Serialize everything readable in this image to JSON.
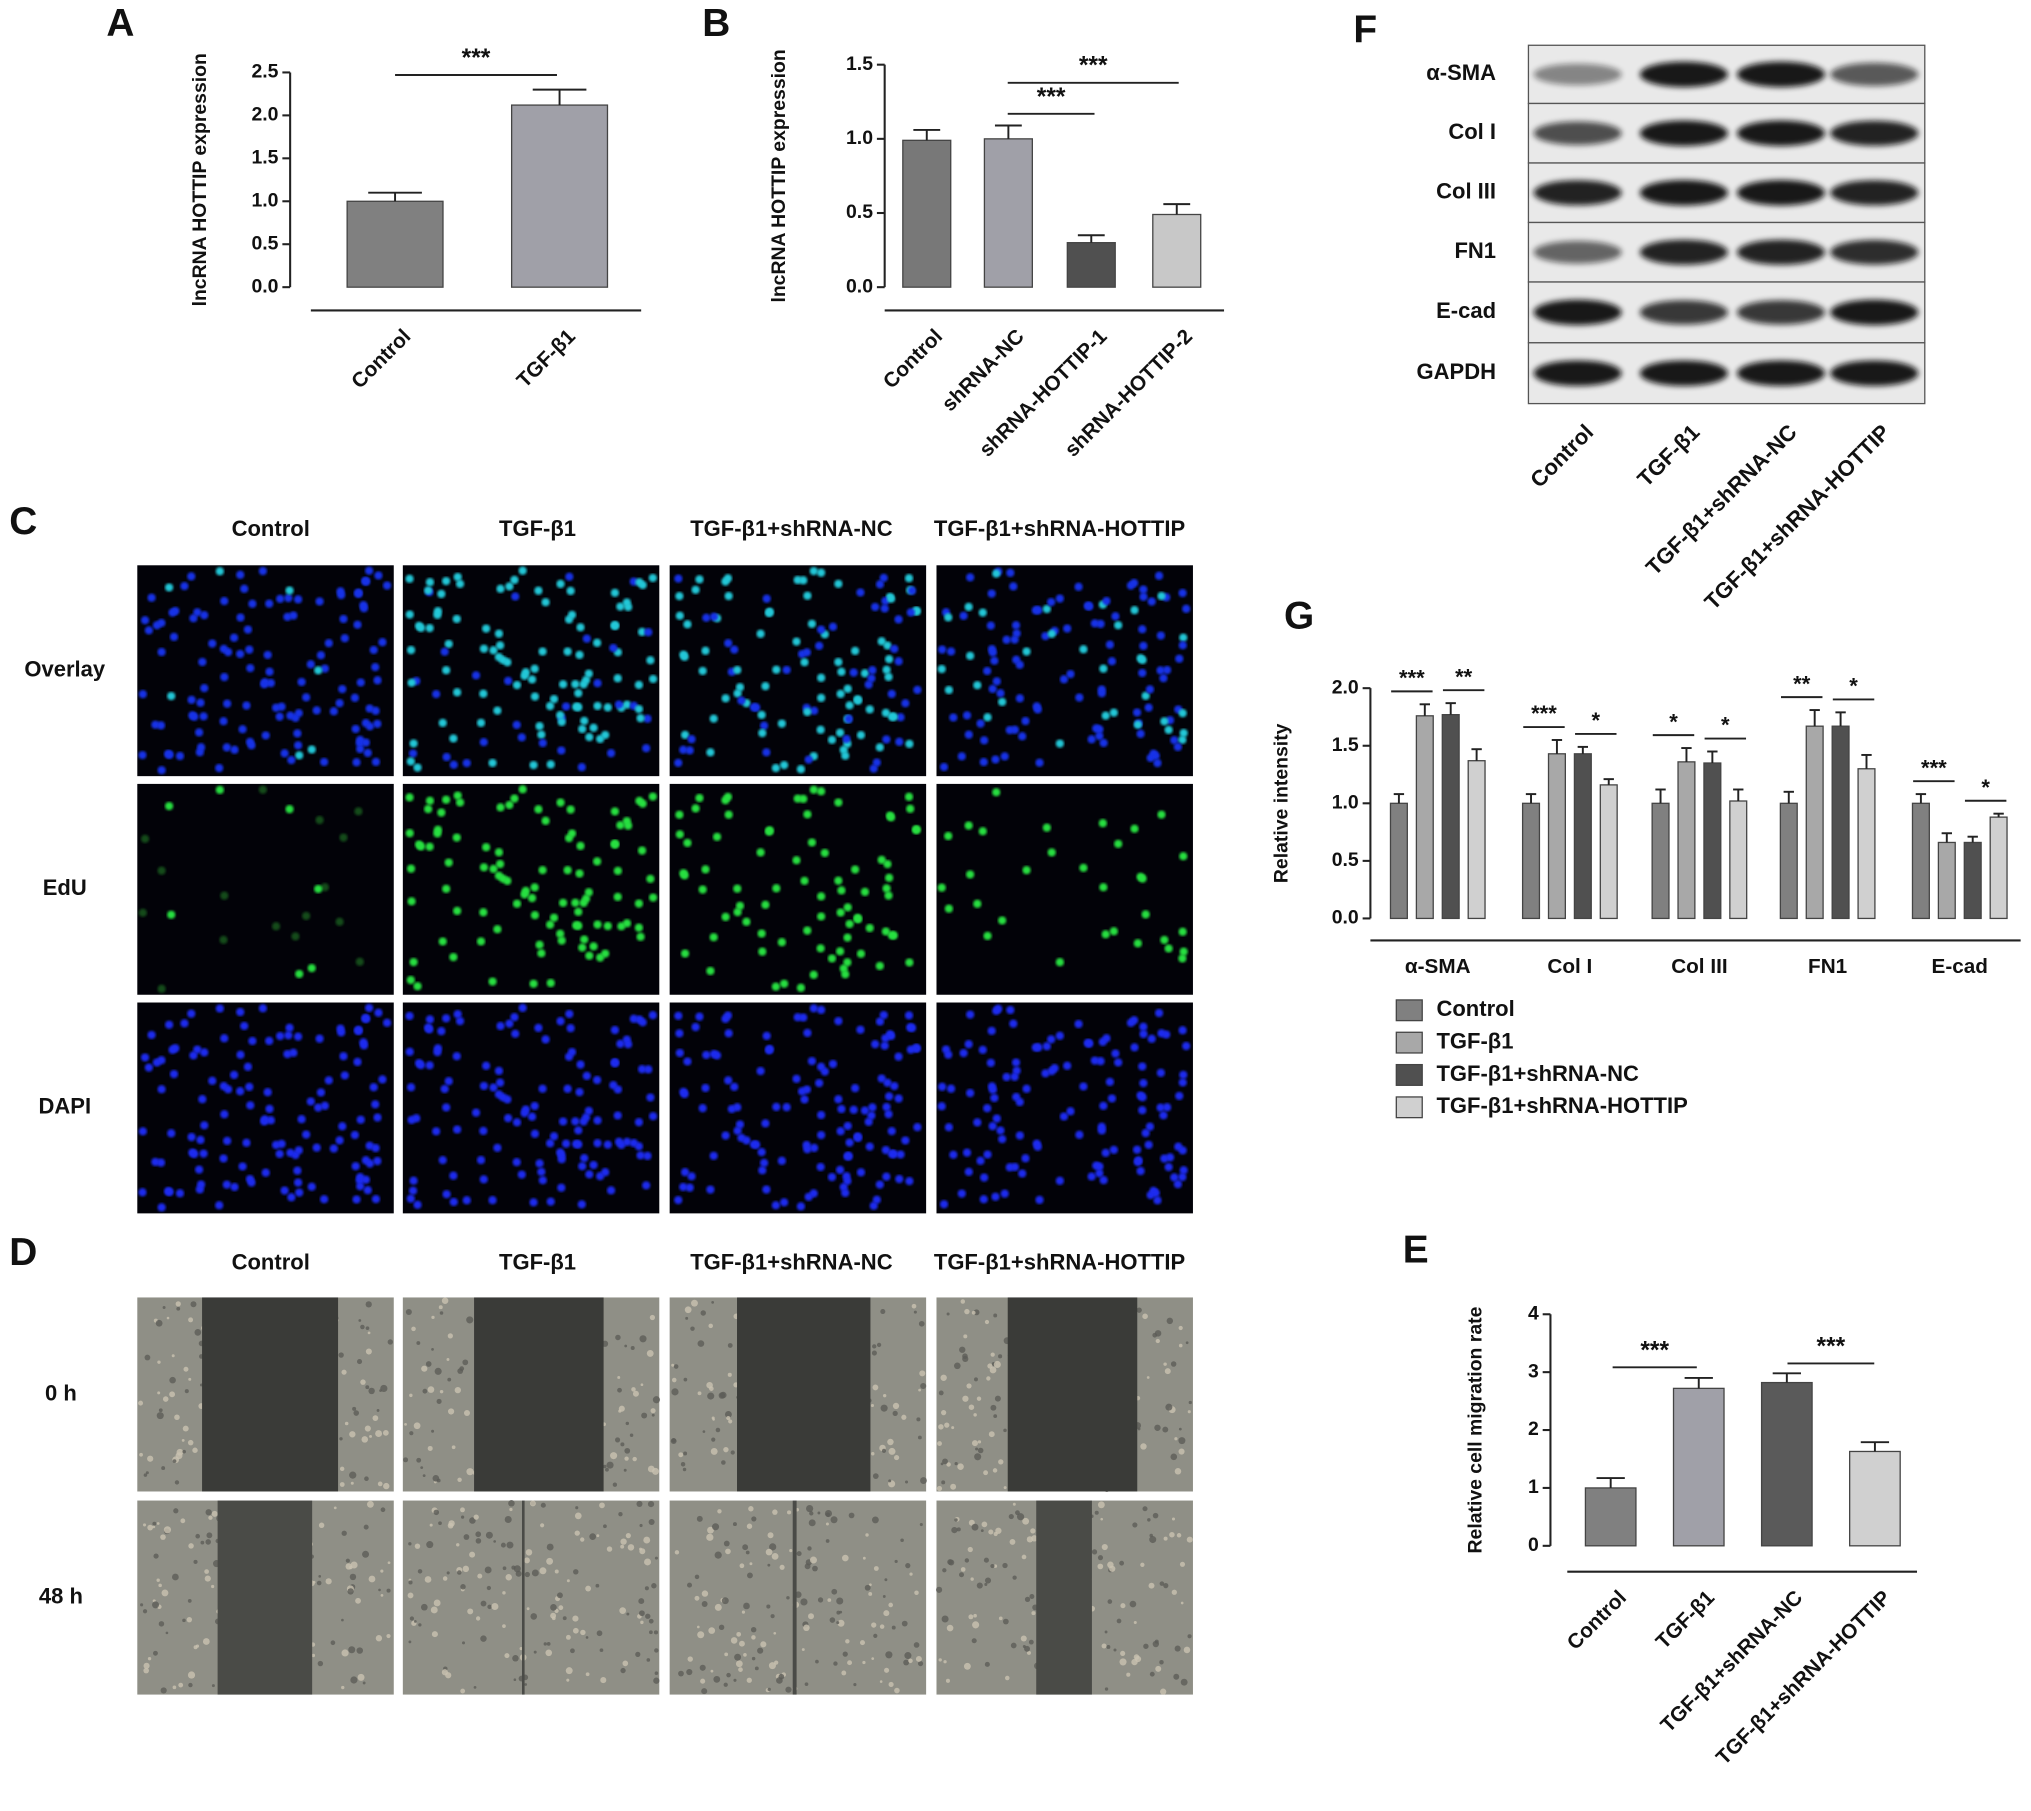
{
  "panel_labels": [
    "A",
    "B",
    "C",
    "D",
    "E",
    "F",
    "G"
  ],
  "chart_data": [
    {
      "type": "bar",
      "ylabel": "lncRNA HOTTIP expression",
      "categories": [
        "Control",
        "TGF-β1"
      ],
      "values": [
        1.0,
        2.12
      ],
      "errors": [
        0.1,
        0.18
      ],
      "colors": [
        "#808080",
        "#a0a0a8"
      ],
      "ylim": [
        0,
        2.5
      ],
      "yticks": [
        {
          "value": 0,
          "label": "0.0"
        },
        {
          "value": 0.5,
          "label": "0.5"
        },
        {
          "value": 1,
          "label": "1.0"
        },
        {
          "value": 1.5,
          "label": "1.5"
        },
        {
          "value": 2,
          "label": "2.0"
        },
        {
          "value": 2.5,
          "label": "2.5"
        }
      ],
      "significance": [
        "***"
      ]
    },
    {
      "type": "bar",
      "ylabel": "lncRNA HOTTIP expression",
      "categories": [
        "Control",
        "shRNA-NC",
        "shRNA-HOTTIP-1",
        "shRNA-HOTTIP-2"
      ],
      "values": [
        0.99,
        1.0,
        0.3,
        0.49
      ],
      "errors": [
        0.07,
        0.09,
        0.05,
        0.07
      ],
      "colors": [
        "#787878",
        "#a0a0a8",
        "#505050",
        "#c8c8c8"
      ],
      "ylim": [
        0,
        1.5
      ],
      "yticks": [
        {
          "value": 0,
          "label": "0.0"
        },
        {
          "value": 0.5,
          "label": "0.5"
        },
        {
          "value": 1,
          "label": "1.0"
        },
        {
          "value": 1.5,
          "label": "1.5"
        }
      ],
      "significance": [
        "***",
        "***"
      ]
    },
    {
      "type": "bar",
      "ylabel": "Relative cell migration rate",
      "categories": [
        "Control",
        "TGF-β1",
        "TGF-β1+shRNA-NC",
        "TGF-β1+shRNA-HOTTIP"
      ],
      "values": [
        1.0,
        2.72,
        2.82,
        1.63
      ],
      "errors": [
        0.17,
        0.18,
        0.16,
        0.16
      ],
      "colors": [
        "#808080",
        "#a0a0a8",
        "#5a5a5a",
        "#d0d0d0"
      ],
      "ylim": [
        0,
        4
      ],
      "yticks": [
        0,
        1,
        2,
        3,
        4
      ],
      "significance": [
        "***",
        "***"
      ]
    },
    {
      "type": "bar",
      "ylabel": "Relative intensity",
      "categories": [
        "α-SMA",
        "Col I",
        "Col III",
        "FN1",
        "E-cad"
      ],
      "series": [
        {
          "name": "Control",
          "color": "#808080",
          "values": [
            1.0,
            1.0,
            1.0,
            1.0,
            1.0
          ],
          "errors": [
            0.08,
            0.08,
            0.12,
            0.1,
            0.08
          ]
        },
        {
          "name": "TGF-β1",
          "color": "#a8a8a8",
          "values": [
            1.76,
            1.43,
            1.36,
            1.67,
            0.66
          ],
          "errors": [
            0.1,
            0.12,
            0.12,
            0.14,
            0.08
          ]
        },
        {
          "name": "TGF-β1+shRNA-NC",
          "color": "#505050",
          "values": [
            1.77,
            1.43,
            1.35,
            1.67,
            0.66
          ],
          "errors": [
            0.1,
            0.06,
            0.1,
            0.12,
            0.05
          ]
        },
        {
          "name": "TGF-β1+shRNA-HOTTIP",
          "color": "#d0d0d0",
          "values": [
            1.37,
            1.16,
            1.02,
            1.3,
            0.88
          ],
          "errors": [
            0.1,
            0.05,
            0.1,
            0.12,
            0.03
          ]
        }
      ],
      "ylim": [
        0,
        2
      ],
      "yticks": [
        {
          "value": 0,
          "label": "0.0"
        },
        {
          "value": 0.5,
          "label": "0.5"
        },
        {
          "value": 1,
          "label": "1.0"
        },
        {
          "value": 1.5,
          "label": "1.5"
        },
        {
          "value": 2,
          "label": "2.0"
        }
      ],
      "significance": [
        [
          "***",
          "**"
        ],
        [
          "***",
          "*"
        ],
        [
          "*",
          "*"
        ],
        [
          "**",
          "*"
        ],
        [
          "***",
          "*"
        ]
      ]
    }
  ],
  "edu_assay": {
    "columns": [
      "Control",
      "TGF-β1",
      "TGF-β1+shRNA-NC",
      "TGF-β1+shRNA-HOTTIP"
    ],
    "rows": [
      "Overlay",
      "EdU",
      "DAPI"
    ]
  },
  "wound_assay": {
    "columns": [
      "Control",
      "TGF-β1",
      "TGF-β1+shRNA-NC",
      "TGF-β1+shRNA-HOTTIP"
    ],
    "rows": [
      "0 h",
      "48 h"
    ]
  },
  "western_blot": {
    "proteins": [
      "α-SMA",
      "Col I",
      "Col III",
      "FN1",
      "E-cad",
      "GAPDH"
    ],
    "lanes": [
      "Control",
      "TGF-β1",
      "TGF-β1+shRNA-NC",
      "TGF-β1+shRNA-HOTTIP"
    ]
  }
}
